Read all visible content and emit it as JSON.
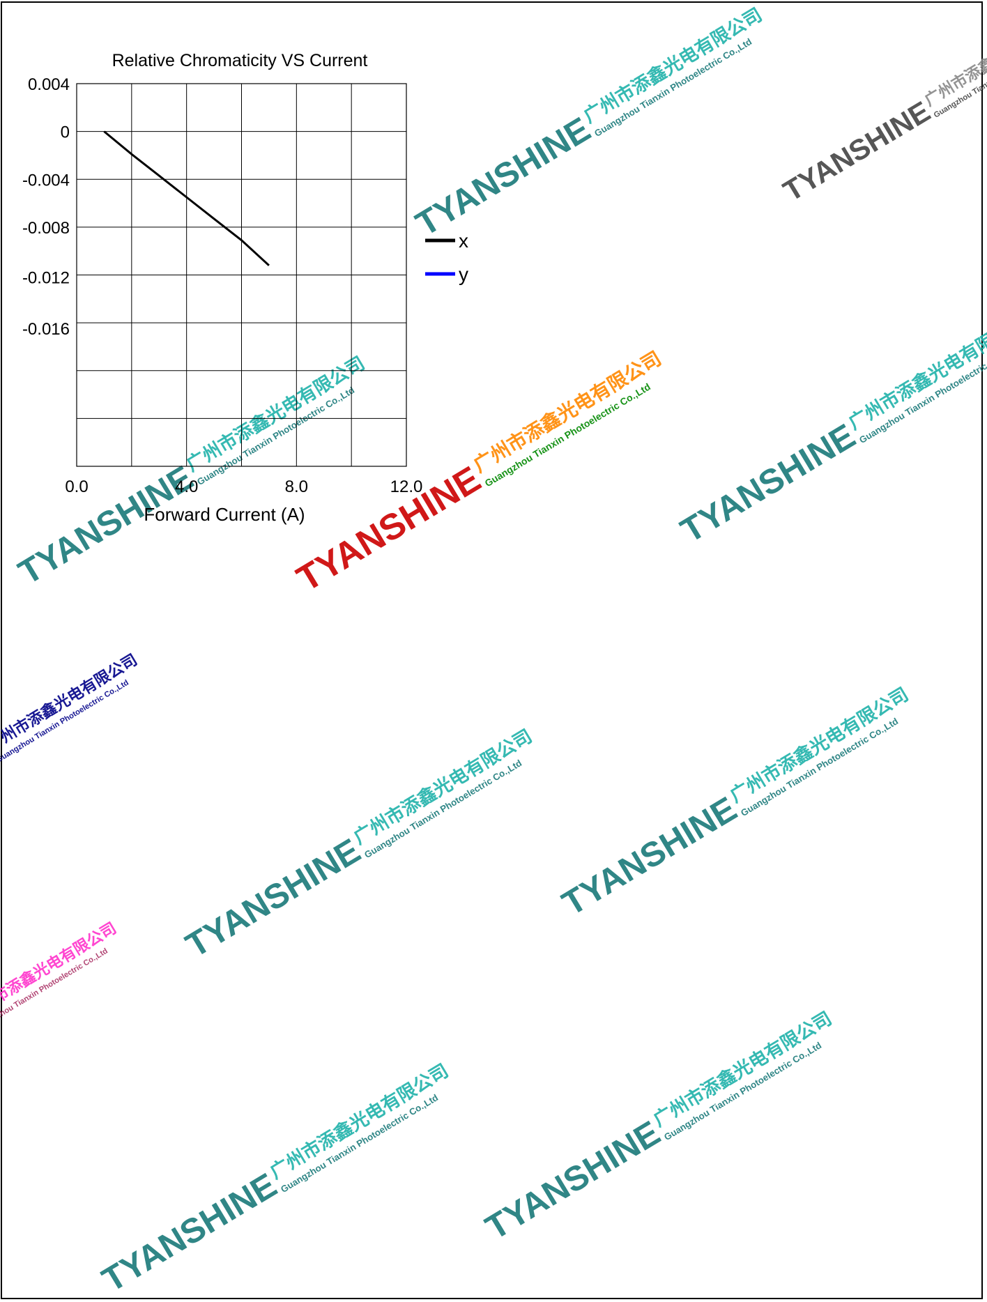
{
  "chart_data": {
    "type": "line",
    "title": "Relative Chromaticity VS Current",
    "xlabel": "Forward Current (A)",
    "ylabel": "",
    "xlim": [
      0,
      12
    ],
    "ylim": [
      -0.028,
      0.004
    ],
    "x_ticks": [
      "0.0",
      "4.0",
      "8.0",
      "12.0"
    ],
    "y_ticks": [
      "0.004",
      "0",
      "-0.004",
      "-0.008",
      "-0.012",
      "-0.016"
    ],
    "grid": true,
    "legend_position": "right",
    "series": [
      {
        "name": "x",
        "color": "#000000",
        "x": [
          1.0,
          2.0,
          3.0,
          4.0,
          5.0,
          6.0,
          7.0
        ],
        "y": [
          0.0,
          -0.0019,
          -0.0037,
          -0.0055,
          -0.0073,
          -0.0091,
          -0.0112
        ]
      },
      {
        "name": "y",
        "color": "#0000ff",
        "x": [],
        "y": []
      }
    ]
  },
  "watermark": {
    "brand": "TYANSHINE",
    "company_cn": "广州市添鑫光电有限公司",
    "company_en": "Guangzhou Tianxin Photoelectric Co.,Ltd"
  }
}
